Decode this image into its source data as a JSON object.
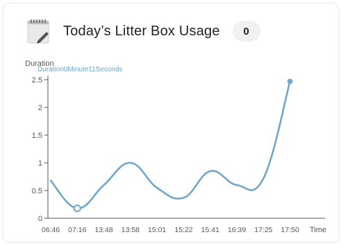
{
  "header": {
    "title": "Today’s Litter Box Usage",
    "count": "0",
    "icon": "notepad-icon"
  },
  "colors": {
    "line": "#6fa6c9",
    "axis": "#555555",
    "tick_text": "#555555",
    "tooltip_text": "#6fa6c9"
  },
  "chart_data": {
    "type": "line",
    "ylabel": "Duration",
    "xlabel": "Time",
    "annotation": "Duration0Minute11Seconds",
    "categories": [
      "06:46",
      "07:16",
      "13:48",
      "13:58",
      "15:01",
      "15:22",
      "15:41",
      "16:39",
      "17:25",
      "17:50"
    ],
    "values": [
      0.68,
      0.18,
      0.6,
      1.0,
      0.55,
      0.37,
      0.85,
      0.6,
      0.72,
      2.47
    ],
    "highlight_index": 1,
    "yticks": [
      "0",
      "0.5",
      "1",
      "1.5",
      "2",
      "2.5"
    ],
    "ylim": [
      0,
      2.5
    ],
    "grid": false
  }
}
